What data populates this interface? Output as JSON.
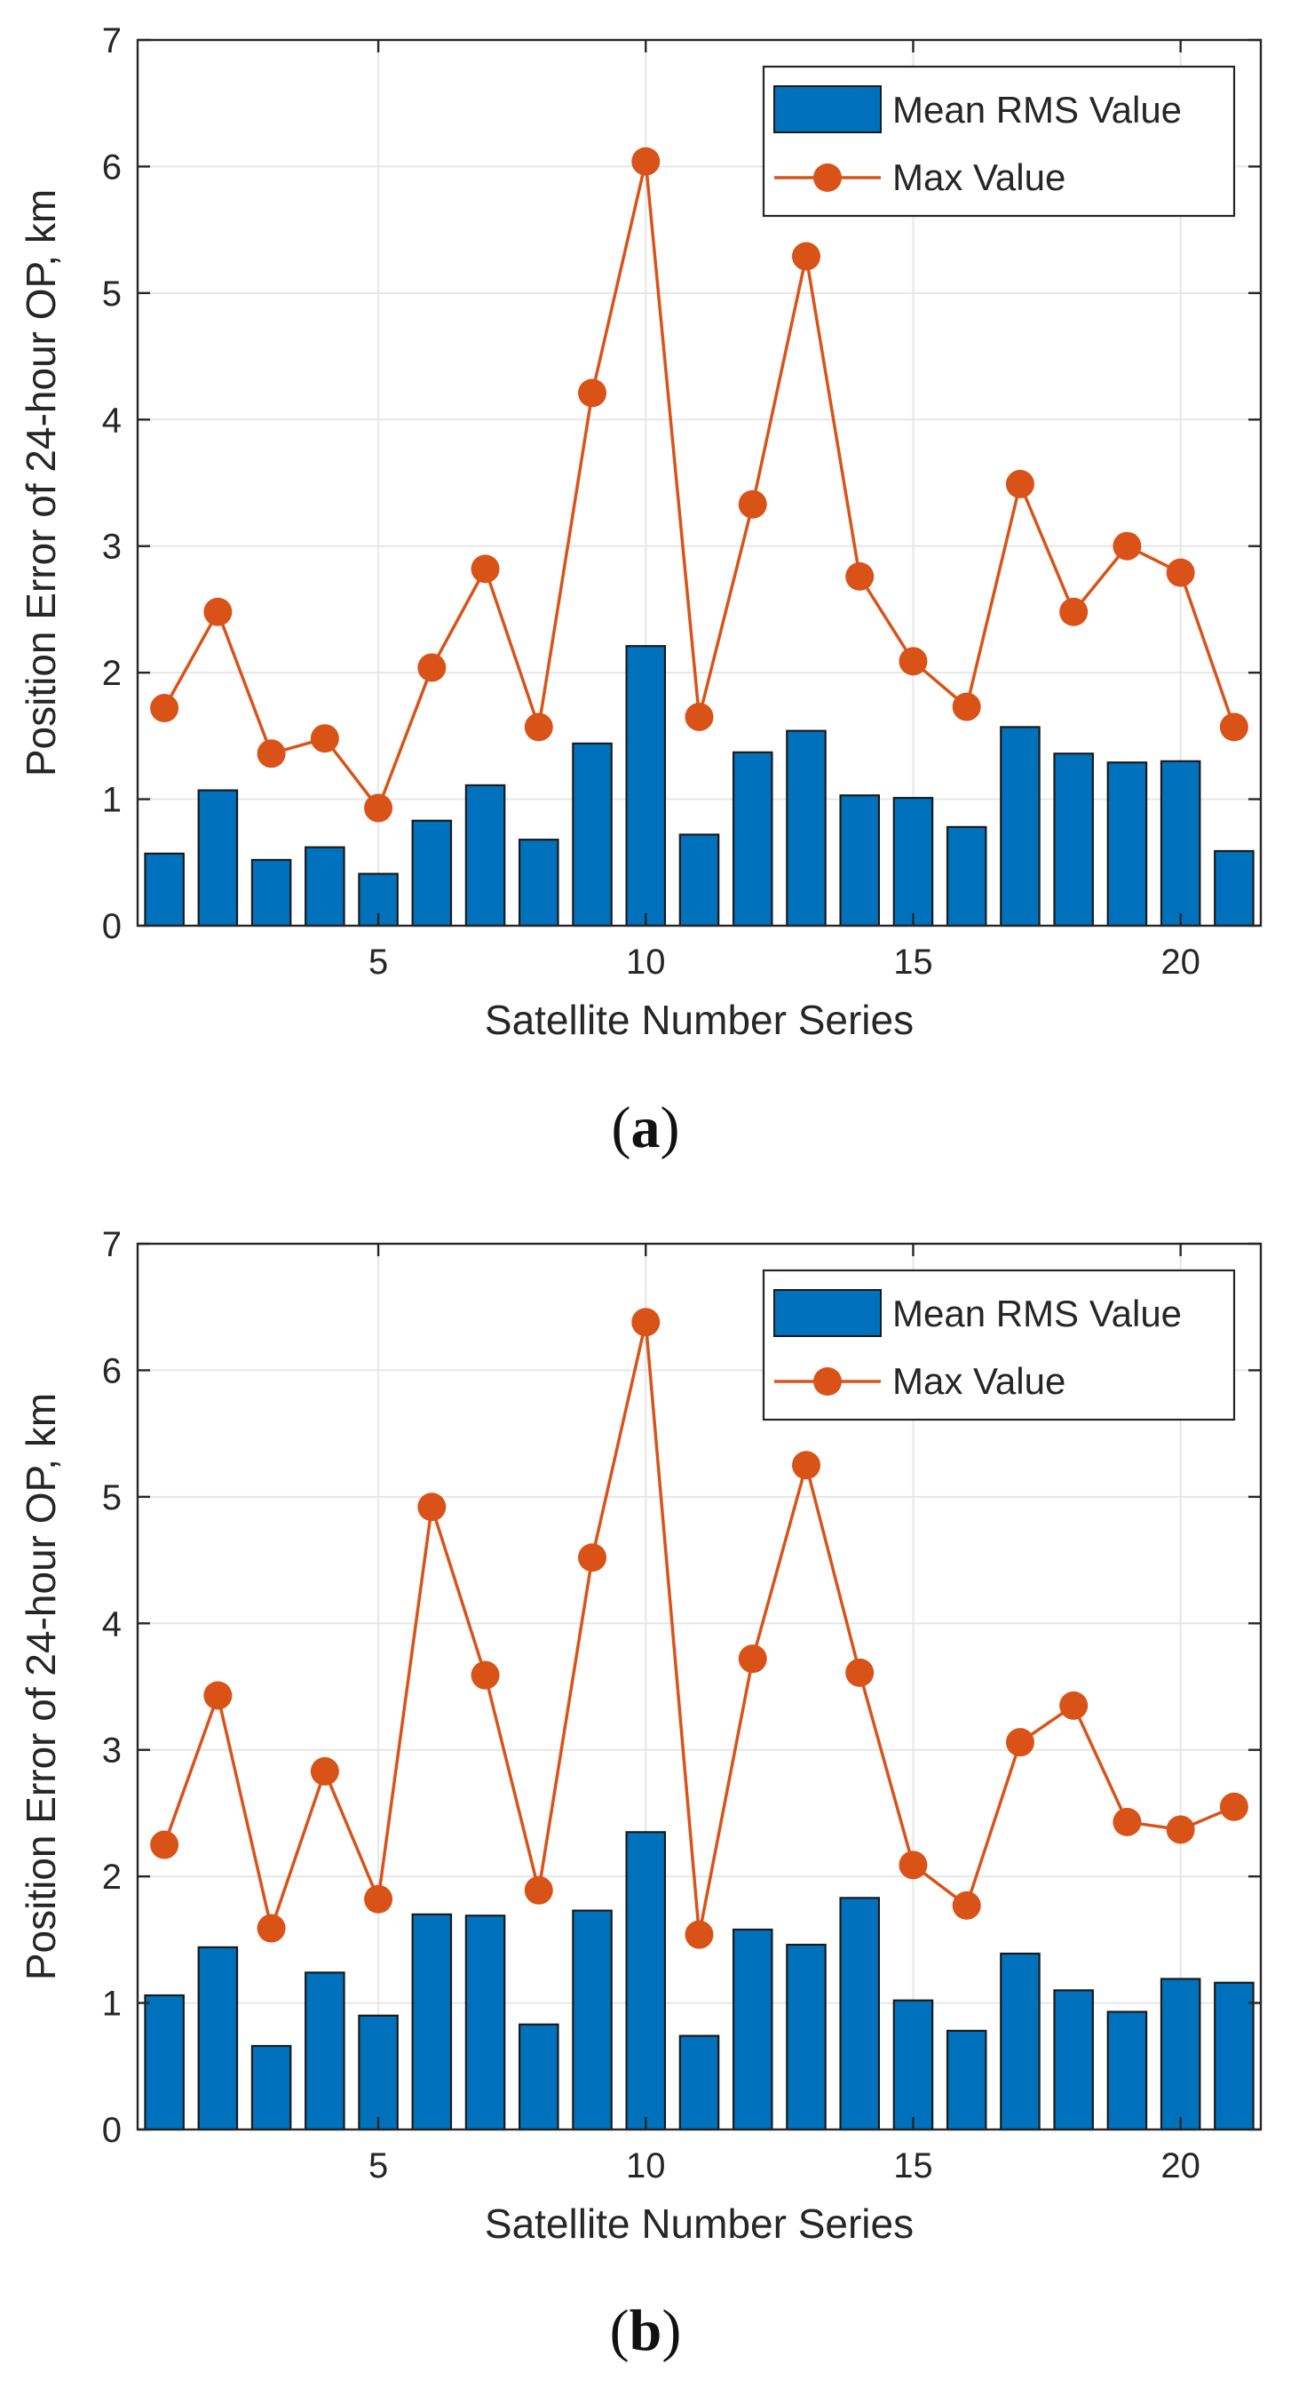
{
  "colors": {
    "bar": "#0072BD",
    "line": "#D95319",
    "grid": "#e6e6e6",
    "axis": "#262626"
  },
  "chart_data": [
    {
      "type": "bar",
      "panel_label": "a",
      "title": "",
      "xlabel": "Satellite Number Series",
      "ylabel": "Position Error of 24-hour OP, km",
      "xlim": [
        0.5,
        21.5
      ],
      "ylim": [
        0,
        7
      ],
      "xticks": [
        5,
        10,
        15,
        20
      ],
      "yticks": [
        0,
        1,
        2,
        3,
        4,
        5,
        6,
        7
      ],
      "grid": true,
      "legend_position": "top-right",
      "x": [
        1,
        2,
        3,
        4,
        5,
        6,
        7,
        8,
        9,
        10,
        11,
        12,
        13,
        14,
        15,
        16,
        17,
        18,
        19,
        20,
        21
      ],
      "series": [
        {
          "name": "Mean RMS Value",
          "type": "bar",
          "values": [
            0.57,
            1.07,
            0.52,
            0.62,
            0.41,
            0.83,
            1.11,
            0.68,
            1.44,
            2.21,
            0.72,
            1.37,
            1.54,
            1.03,
            1.01,
            0.78,
            1.57,
            1.36,
            1.29,
            1.3,
            0.59
          ]
        },
        {
          "name": "Max Value",
          "type": "line",
          "values": [
            1.72,
            2.48,
            1.36,
            1.48,
            0.93,
            2.04,
            2.82,
            1.57,
            4.21,
            6.04,
            1.65,
            3.33,
            5.29,
            2.76,
            2.09,
            1.73,
            3.49,
            2.48,
            3.0,
            2.79,
            1.57
          ]
        }
      ]
    },
    {
      "type": "bar",
      "panel_label": "b",
      "title": "",
      "xlabel": "Satellite Number Series",
      "ylabel": "Position Error of 24-hour OP, km",
      "xlim": [
        0.5,
        21.5
      ],
      "ylim": [
        0,
        7
      ],
      "xticks": [
        5,
        10,
        15,
        20
      ],
      "yticks": [
        0,
        1,
        2,
        3,
        4,
        5,
        6,
        7
      ],
      "grid": true,
      "legend_position": "top-right",
      "x": [
        1,
        2,
        3,
        4,
        5,
        6,
        7,
        8,
        9,
        10,
        11,
        12,
        13,
        14,
        15,
        16,
        17,
        18,
        19,
        20,
        21
      ],
      "series": [
        {
          "name": "Mean RMS Value",
          "type": "bar",
          "values": [
            1.06,
            1.44,
            0.66,
            1.24,
            0.9,
            1.7,
            1.69,
            0.83,
            1.73,
            2.35,
            0.74,
            1.58,
            1.46,
            1.83,
            1.02,
            0.78,
            1.39,
            1.1,
            0.93,
            1.19,
            1.16
          ]
        },
        {
          "name": "Max Value",
          "type": "line",
          "values": [
            2.25,
            3.43,
            1.59,
            2.83,
            1.82,
            4.92,
            3.59,
            1.89,
            4.52,
            6.38,
            1.54,
            3.72,
            5.25,
            3.61,
            2.09,
            1.77,
            3.06,
            3.35,
            2.43,
            2.37,
            2.55
          ]
        }
      ]
    }
  ]
}
